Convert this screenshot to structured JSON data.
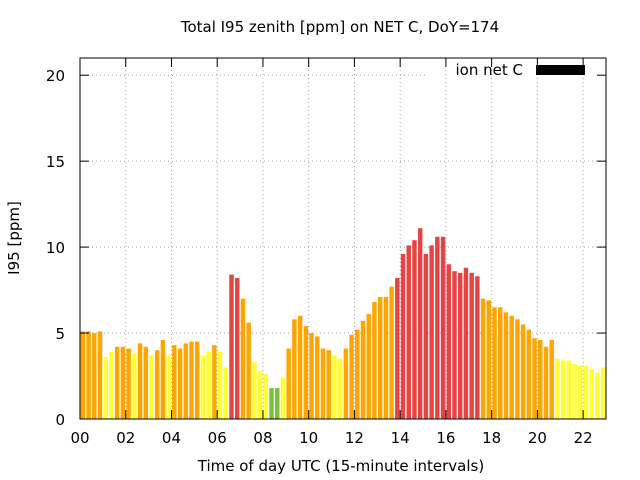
{
  "chart_data": {
    "type": "bar",
    "title": "Total I95 zenith [ppm] on NET C, DoY=174",
    "xlabel": "Time of day UTC (15-minute intervals)",
    "ylabel": "I95 [ppm]",
    "xlim": [
      0,
      23
    ],
    "ylim": [
      0,
      21
    ],
    "x_ticks": [
      "00",
      "02",
      "04",
      "06",
      "08",
      "10",
      "12",
      "14",
      "16",
      "18",
      "20",
      "22"
    ],
    "y_ticks": [
      "0",
      "5",
      "10",
      "15",
      "20"
    ],
    "grid": true,
    "legend_position": "top-right",
    "legend": [
      {
        "label": "ion net C",
        "color": "#000000"
      }
    ],
    "level_colors": {
      "low": "#ffff33",
      "moderate": "#ffa500",
      "high": "#e34545",
      "very_low": "#7bbf3a"
    },
    "series": [
      {
        "x": [
          0.0,
          0.25,
          0.5,
          0.75,
          1.0,
          1.25,
          1.5,
          1.75,
          2.0,
          2.25,
          2.5,
          2.75,
          3.0,
          3.25,
          3.5,
          3.75,
          4.0,
          4.25,
          4.5,
          4.75,
          5.0,
          5.25,
          5.5,
          5.75,
          6.0,
          6.25,
          6.5,
          6.75,
          7.0,
          7.25,
          7.5,
          7.75,
          8.0,
          8.25,
          8.5,
          8.75,
          9.0,
          9.25,
          9.5,
          9.75,
          10.0,
          10.25,
          10.5,
          10.75,
          11.0,
          11.25,
          11.5,
          11.75,
          12.0,
          12.25,
          12.5,
          12.75,
          13.0,
          13.25,
          13.5,
          13.75,
          14.0,
          14.25,
          14.5,
          14.75,
          15.0,
          15.25,
          15.5,
          15.75,
          16.0,
          16.25,
          16.5,
          16.75,
          17.0,
          17.25,
          17.5,
          17.75,
          18.0,
          18.25,
          18.5,
          18.75,
          19.0,
          19.25,
          19.5,
          19.75,
          20.0,
          20.25,
          20.5,
          20.75,
          21.0,
          21.25,
          21.5,
          21.75,
          22.0,
          22.25,
          22.5,
          22.75
        ],
        "values": [
          5.1,
          5.1,
          5.0,
          5.1,
          3.6,
          3.9,
          4.2,
          4.2,
          4.1,
          3.8,
          4.4,
          4.2,
          3.7,
          4.0,
          4.6,
          3.7,
          4.3,
          4.1,
          4.4,
          4.5,
          4.5,
          3.7,
          3.9,
          4.3,
          3.9,
          3.0,
          8.4,
          8.2,
          7.0,
          5.6,
          3.3,
          2.8,
          2.6,
          1.8,
          1.8,
          2.4,
          4.1,
          5.8,
          6.0,
          5.4,
          5.0,
          4.8,
          4.1,
          4.0,
          3.7,
          3.5,
          4.1,
          4.9,
          5.2,
          5.7,
          6.1,
          6.8,
          7.1,
          7.1,
          7.7,
          8.2,
          9.6,
          10.1,
          10.4,
          11.1,
          9.6,
          10.1,
          10.6,
          10.6,
          9.0,
          8.6,
          8.5,
          8.8,
          8.5,
          8.3,
          7.0,
          6.9,
          6.5,
          6.5,
          6.2,
          6.0,
          5.8,
          5.5,
          5.2,
          4.7,
          4.6,
          4.2,
          4.6,
          3.5,
          3.4,
          3.4,
          3.2,
          3.1,
          3.1,
          2.9,
          2.7,
          3.0
        ],
        "levels": [
          "moderate",
          "moderate",
          "moderate",
          "moderate",
          "low",
          "low",
          "moderate",
          "moderate",
          "moderate",
          "low",
          "moderate",
          "moderate",
          "low",
          "moderate",
          "moderate",
          "low",
          "moderate",
          "moderate",
          "moderate",
          "moderate",
          "moderate",
          "low",
          "low",
          "moderate",
          "low",
          "low",
          "high",
          "high",
          "moderate",
          "moderate",
          "low",
          "low",
          "low",
          "very_low",
          "very_low",
          "low",
          "moderate",
          "moderate",
          "moderate",
          "moderate",
          "moderate",
          "moderate",
          "moderate",
          "moderate",
          "low",
          "low",
          "moderate",
          "moderate",
          "moderate",
          "moderate",
          "moderate",
          "moderate",
          "moderate",
          "moderate",
          "moderate",
          "high",
          "high",
          "high",
          "high",
          "high",
          "high",
          "high",
          "high",
          "high",
          "high",
          "high",
          "high",
          "high",
          "high",
          "high",
          "moderate",
          "moderate",
          "moderate",
          "moderate",
          "moderate",
          "moderate",
          "moderate",
          "moderate",
          "moderate",
          "moderate",
          "moderate",
          "moderate",
          "moderate",
          "low",
          "low",
          "low",
          "low",
          "low",
          "low",
          "low",
          "low",
          "low"
        ]
      }
    ]
  }
}
